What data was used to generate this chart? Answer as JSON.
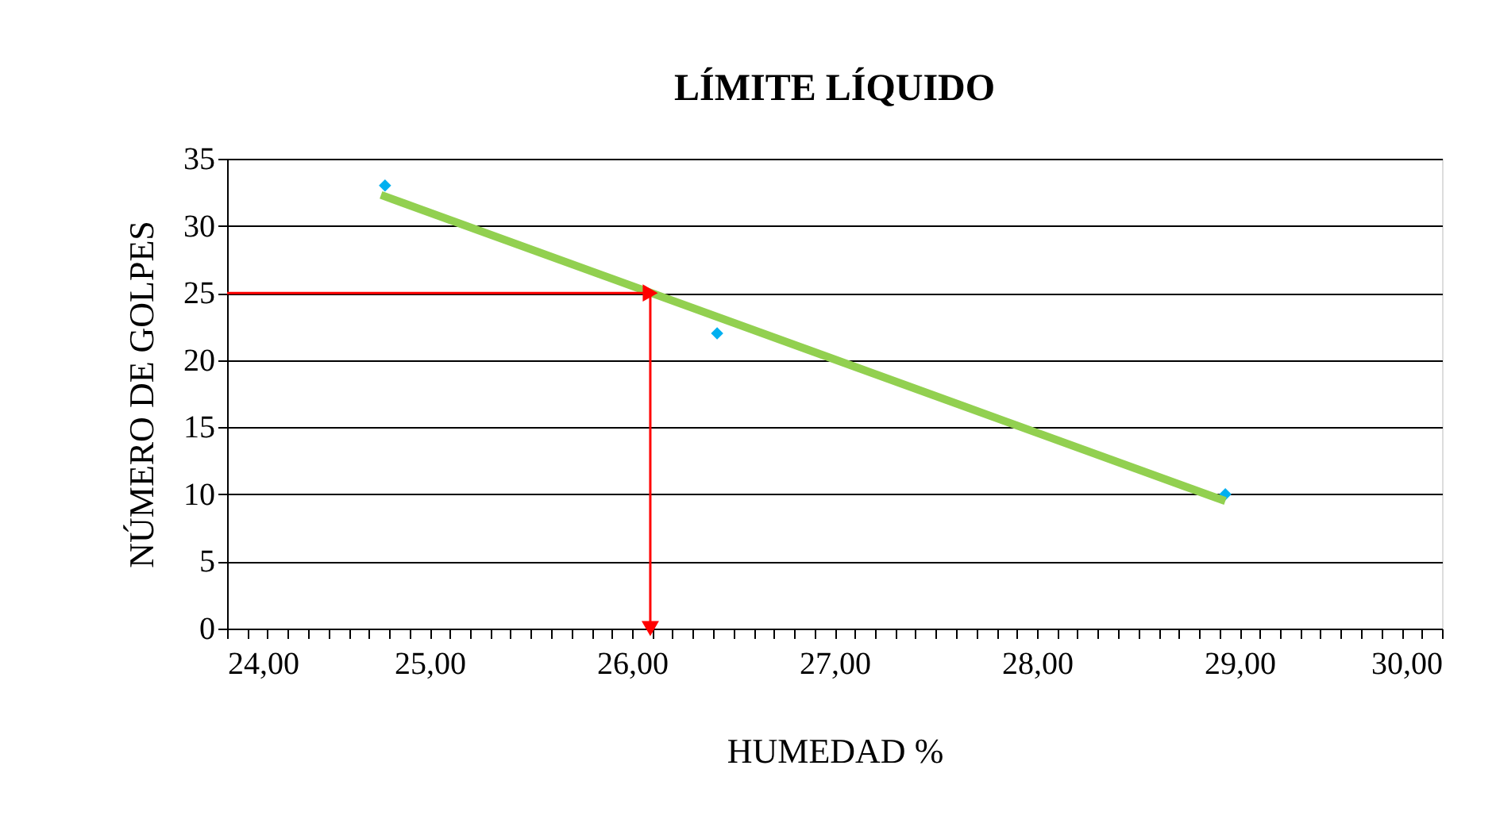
{
  "chart_data": {
    "type": "scatter",
    "title": "LÍMITE LÍQUIDO",
    "xlabel": "HUMEDAD %",
    "ylabel": "NÚMERO DE GOLPES",
    "xlim": [
      24,
      30
    ],
    "ylim": [
      0,
      35
    ],
    "xticks": [
      {
        "value": 24,
        "label": "24,00"
      },
      {
        "value": 24.1,
        "label": null
      },
      {
        "value": 24.2,
        "label": null
      },
      {
        "value": 24.3,
        "label": null
      },
      {
        "value": 24.4,
        "label": null
      },
      {
        "value": 24.5,
        "label": null
      },
      {
        "value": 24.6,
        "label": null
      },
      {
        "value": 24.7,
        "label": null
      },
      {
        "value": 24.8,
        "label": null
      },
      {
        "value": 24.9,
        "label": null
      },
      {
        "value": 25,
        "label": "25,00"
      },
      {
        "value": 25.1,
        "label": null
      },
      {
        "value": 25.2,
        "label": null
      },
      {
        "value": 25.3,
        "label": null
      },
      {
        "value": 25.4,
        "label": null
      },
      {
        "value": 25.5,
        "label": null
      },
      {
        "value": 25.6,
        "label": null
      },
      {
        "value": 25.7,
        "label": null
      },
      {
        "value": 25.8,
        "label": null
      },
      {
        "value": 25.9,
        "label": null
      },
      {
        "value": 26,
        "label": "26,00"
      },
      {
        "value": 26.1,
        "label": null
      },
      {
        "value": 26.2,
        "label": null
      },
      {
        "value": 26.3,
        "label": null
      },
      {
        "value": 26.4,
        "label": null
      },
      {
        "value": 26.5,
        "label": null
      },
      {
        "value": 26.6,
        "label": null
      },
      {
        "value": 26.7,
        "label": null
      },
      {
        "value": 26.8,
        "label": null
      },
      {
        "value": 26.9,
        "label": null
      },
      {
        "value": 27,
        "label": "27,00"
      },
      {
        "value": 27.1,
        "label": null
      },
      {
        "value": 27.2,
        "label": null
      },
      {
        "value": 27.3,
        "label": null
      },
      {
        "value": 27.4,
        "label": null
      },
      {
        "value": 27.5,
        "label": null
      },
      {
        "value": 27.6,
        "label": null
      },
      {
        "value": 27.7,
        "label": null
      },
      {
        "value": 27.8,
        "label": null
      },
      {
        "value": 27.9,
        "label": null
      },
      {
        "value": 28,
        "label": "28,00"
      },
      {
        "value": 28.1,
        "label": null
      },
      {
        "value": 28.2,
        "label": null
      },
      {
        "value": 28.3,
        "label": null
      },
      {
        "value": 28.4,
        "label": null
      },
      {
        "value": 28.5,
        "label": null
      },
      {
        "value": 28.6,
        "label": null
      },
      {
        "value": 28.7,
        "label": null
      },
      {
        "value": 28.8,
        "label": null
      },
      {
        "value": 28.9,
        "label": null
      },
      {
        "value": 29,
        "label": "29,00"
      },
      {
        "value": 29.1,
        "label": null
      },
      {
        "value": 29.2,
        "label": null
      },
      {
        "value": 29.3,
        "label": null
      },
      {
        "value": 29.4,
        "label": null
      },
      {
        "value": 29.5,
        "label": null
      },
      {
        "value": 29.6,
        "label": null
      },
      {
        "value": 29.7,
        "label": null
      },
      {
        "value": 29.8,
        "label": null
      },
      {
        "value": 29.9,
        "label": null
      },
      {
        "value": 30,
        "label": "30,00"
      }
    ],
    "yticks": [
      0,
      5,
      10,
      15,
      20,
      25,
      30,
      35
    ],
    "grid": "y",
    "series": [
      {
        "type": "scatter",
        "marker": "diamond",
        "color": "#00b0f0",
        "x": [
          24.78,
          26.42,
          28.93
        ],
        "values": [
          33,
          22,
          10
        ]
      },
      {
        "type": "line",
        "color": "#92d050",
        "x": [
          24.76,
          28.93
        ],
        "values": [
          32.3,
          9.5
        ]
      },
      {
        "type": "line",
        "color": "#ff0000",
        "x": [
          24,
          26.09,
          26.09
        ],
        "values": [
          25,
          25,
          0
        ]
      }
    ]
  }
}
